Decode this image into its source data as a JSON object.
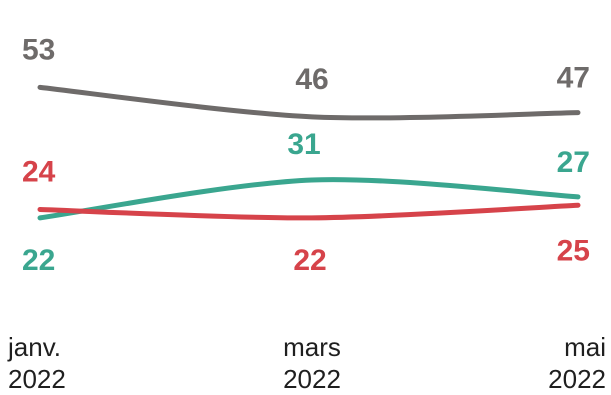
{
  "chart_data": {
    "type": "line",
    "title": "",
    "xlabel": "",
    "ylabel": "",
    "categories": [
      [
        "janv.",
        "2022"
      ],
      [
        "mars",
        "2022"
      ],
      [
        "mai",
        "2022"
      ]
    ],
    "series": [
      {
        "values": [
          53,
          46,
          47
        ],
        "color": "#6e6b6a"
      },
      {
        "values": [
          22,
          31,
          27
        ],
        "color": "#3aa68f"
      },
      {
        "values": [
          24,
          22,
          25
        ],
        "color": "#d6434a"
      }
    ],
    "legend": "none",
    "grid": false,
    "data_labels": true
  }
}
